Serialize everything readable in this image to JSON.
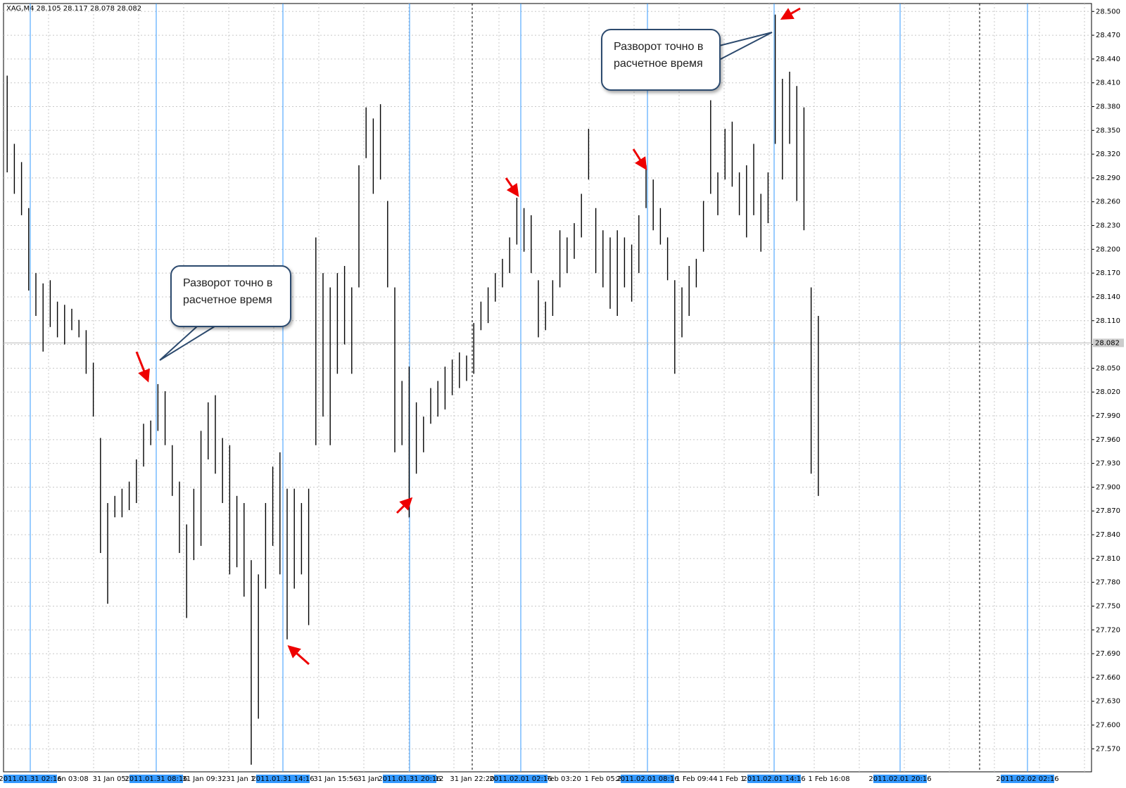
{
  "chart_data": {
    "type": "ohlc",
    "title": "XAG,M4  28.105 28.117 28.078 28.082",
    "high": [
      28.419,
      28.333,
      28.31,
      28.252,
      28.17,
      28.157,
      28.161,
      28.134,
      28.13,
      28.125,
      28.111,
      28.098,
      28.057,
      27.962,
      27.88,
      27.889,
      27.898,
      27.907,
      27.935,
      27.98,
      27.984,
      28.03,
      28.021,
      27.953,
      27.907,
      27.853,
      27.898,
      27.971,
      28.007,
      28.016,
      27.962,
      27.953,
      27.889,
      27.88,
      27.808,
      27.79,
      27.88,
      27.926,
      27.944,
      27.898,
      27.898,
      27.88,
      27.898,
      28.215,
      28.17,
      28.152,
      28.17,
      28.179,
      28.152,
      28.306,
      28.379,
      28.365,
      28.383,
      28.261,
      28.152,
      28.034,
      28.052,
      28.007,
      27.989,
      28.025,
      28.034,
      28.052,
      28.061,
      28.07,
      28.066,
      28.107,
      28.134,
      28.152,
      28.17,
      28.188,
      28.215,
      28.265,
      28.252,
      28.243,
      28.161,
      28.134,
      28.161,
      28.224,
      28.215,
      28.233,
      28.27,
      28.352,
      28.252,
      28.224,
      28.215,
      28.224,
      28.215,
      28.206,
      28.243,
      28.306,
      28.288,
      28.252,
      28.215,
      28.161,
      28.152,
      28.179,
      28.188,
      28.261,
      28.388,
      28.297,
      28.352,
      28.361,
      28.297,
      28.306,
      28.333,
      28.27,
      28.297,
      28.496,
      28.415,
      28.424,
      28.406,
      28.379,
      28.152,
      28.116
    ],
    "low": [
      28.297,
      28.27,
      28.243,
      28.148,
      28.116,
      28.071,
      28.102,
      28.089,
      28.08,
      28.098,
      28.089,
      28.043,
      27.989,
      27.817,
      27.753,
      27.862,
      27.862,
      27.871,
      27.88,
      27.926,
      27.953,
      27.971,
      27.953,
      27.889,
      27.817,
      27.735,
      27.808,
      27.826,
      27.935,
      27.917,
      27.88,
      27.79,
      27.799,
      27.762,
      27.55,
      27.608,
      27.772,
      27.826,
      27.79,
      27.708,
      27.772,
      27.79,
      27.726,
      27.953,
      27.989,
      27.953,
      28.043,
      28.08,
      28.043,
      28.152,
      28.315,
      28.27,
      28.288,
      28.152,
      27.944,
      27.953,
      27.862,
      27.917,
      27.944,
      27.98,
      27.989,
      27.998,
      28.016,
      28.025,
      28.034,
      28.043,
      28.098,
      28.107,
      28.134,
      28.152,
      28.17,
      28.206,
      28.197,
      28.17,
      28.089,
      28.098,
      28.116,
      28.152,
      28.17,
      28.188,
      28.215,
      28.288,
      28.17,
      28.152,
      28.125,
      28.116,
      28.152,
      28.134,
      28.17,
      28.252,
      28.224,
      28.206,
      28.161,
      28.043,
      28.089,
      28.116,
      28.152,
      28.197,
      28.27,
      28.243,
      28.288,
      28.279,
      28.243,
      28.215,
      28.243,
      28.197,
      28.233,
      28.333,
      28.288,
      28.333,
      28.261,
      28.224,
      27.917,
      27.889
    ],
    "color": "#000000",
    "ylim": [
      27.541,
      28.51
    ],
    "yticks": [
      {
        "value": 28.5,
        "label": "28.500"
      },
      {
        "value": 28.47,
        "label": "28.470"
      },
      {
        "value": 28.44,
        "label": "28.440"
      },
      {
        "value": 28.41,
        "label": "28.410"
      },
      {
        "value": 28.38,
        "label": "28.380"
      },
      {
        "value": 28.35,
        "label": "28.350"
      },
      {
        "value": 28.32,
        "label": "28.320"
      },
      {
        "value": 28.29,
        "label": "28.290"
      },
      {
        "value": 28.26,
        "label": "28.260"
      },
      {
        "value": 28.23,
        "label": "28.230"
      },
      {
        "value": 28.2,
        "label": "28.200"
      },
      {
        "value": 28.17,
        "label": "28.170"
      },
      {
        "value": 28.14,
        "label": "28.140"
      },
      {
        "value": 28.11,
        "label": "28.110"
      },
      {
        "value": 28.08,
        "label": "28.080"
      },
      {
        "value": 28.05,
        "label": "28.050"
      },
      {
        "value": 28.02,
        "label": "28.020"
      },
      {
        "value": 27.99,
        "label": "27.990"
      },
      {
        "value": 27.96,
        "label": "27.960"
      },
      {
        "value": 27.93,
        "label": "27.930"
      },
      {
        "value": 27.9,
        "label": "27.900"
      },
      {
        "value": 27.87,
        "label": "27.870"
      },
      {
        "value": 27.84,
        "label": "27.840"
      },
      {
        "value": 27.81,
        "label": "27.810"
      },
      {
        "value": 27.78,
        "label": "27.780"
      },
      {
        "value": 27.75,
        "label": "27.750"
      },
      {
        "value": 27.72,
        "label": "27.720"
      },
      {
        "value": 27.69,
        "label": "27.690"
      },
      {
        "value": 27.66,
        "label": "27.660"
      },
      {
        "value": 27.63,
        "label": "27.630"
      },
      {
        "value": 27.6,
        "label": "27.600"
      },
      {
        "value": 27.57,
        "label": "27.570"
      }
    ],
    "current_price": {
      "value": 28.082,
      "label": "28.082"
    },
    "grid": true,
    "time_labels": [
      "Jan 03:08",
      "31 Jan 05:1",
      "31 Jan 09:32",
      "31 Jan 11",
      "31 Jan 15:56",
      "31 Jan",
      "12",
      "31 Jan 22:20",
      "Feb 03:20",
      "1 Feb 05:2",
      "1 Feb 09:44",
      "1 Feb 1",
      "1 Feb 16:08"
    ],
    "period_labels": [
      "2011.01.31 02:16",
      "2011.01.31 08:16",
      "2011.01.31 14:16",
      "2011.01.31 20:16",
      "2011.02.01 02:16",
      "2011.02.01 08:16",
      "2011.02.01 14:16",
      "2011.02.01 20:16",
      "2011.02.02 02:16"
    ],
    "annotations": [
      "Разворот точно в расчетное время",
      "Разворот точно в расчетное время"
    ]
  }
}
